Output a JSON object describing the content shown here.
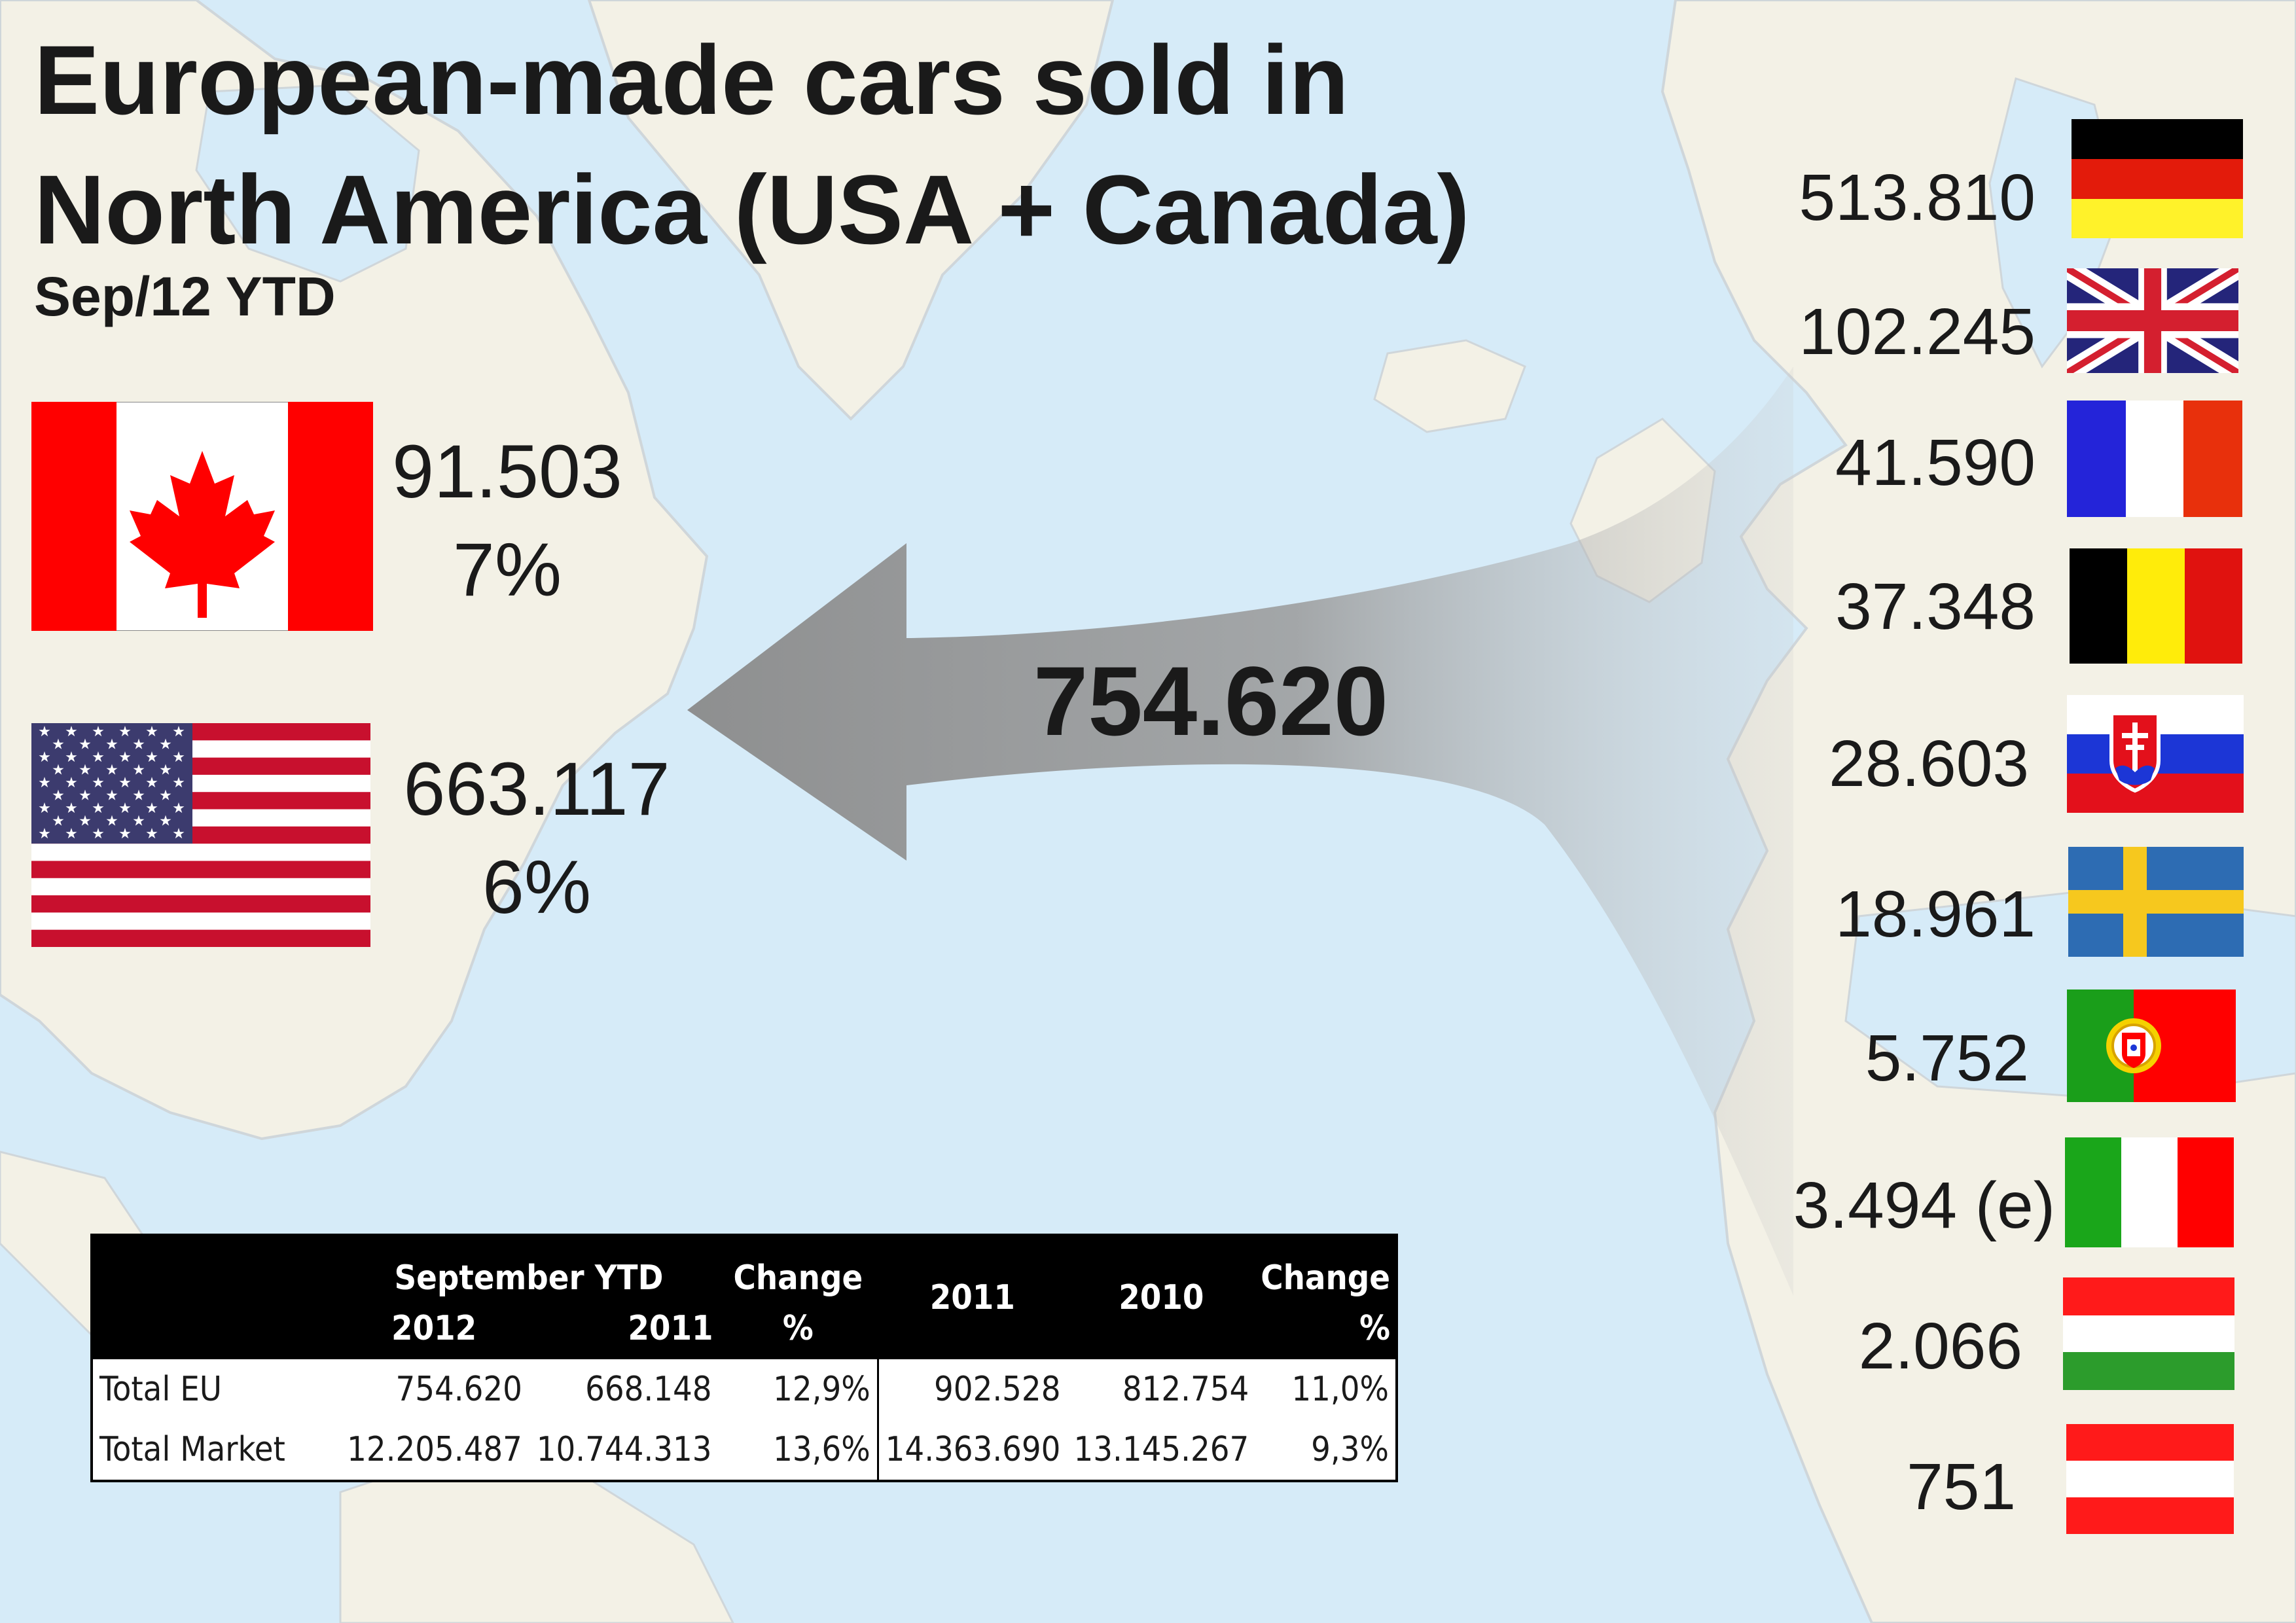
{
  "title": {
    "line1": "European-made cars sold in",
    "line2": "North America (USA + Canada)",
    "subtitle": "Sep/12 YTD"
  },
  "destinations": {
    "canada": {
      "value": "91.503",
      "share": "7%"
    },
    "usa": {
      "value": "663.117",
      "share": "6%"
    }
  },
  "total_flow": "754.620",
  "origins": [
    {
      "country": "germany",
      "value": "513.810"
    },
    {
      "country": "united-kingdom",
      "value": "102.245"
    },
    {
      "country": "france",
      "value": "41.590"
    },
    {
      "country": "belgium",
      "value": "37.348"
    },
    {
      "country": "slovakia",
      "value": "28.603"
    },
    {
      "country": "sweden",
      "value": "18.961"
    },
    {
      "country": "portugal",
      "value": "5.752"
    },
    {
      "country": "italy",
      "value": "3.494 (e)"
    },
    {
      "country": "hungary",
      "value": "2.066"
    },
    {
      "country": "austria",
      "value": "751"
    }
  ],
  "table": {
    "header_top": [
      "September YTD",
      "Change",
      "2011",
      "2010",
      "Change"
    ],
    "header_bottom": [
      "2012",
      "2011",
      "%",
      "%"
    ],
    "rows": [
      {
        "label": "Total EU",
        "v2012": "754.620",
        "v2011": "668.148",
        "change": "12,9%",
        "full2011": "902.528",
        "full2010": "812.754",
        "change2": "11,0%"
      },
      {
        "label": "Total Market",
        "v2012": "12.205.487",
        "v2011": "10.744.313",
        "change": "13,6%",
        "full2011": "14.363.690",
        "full2010": "13.145.267",
        "change2": "9,3%"
      }
    ]
  },
  "colors": {
    "ocean": "#d6ebf8",
    "land": "#f3f1e6",
    "arrow": "#8e8e8e",
    "text": "#1a1a1a"
  }
}
